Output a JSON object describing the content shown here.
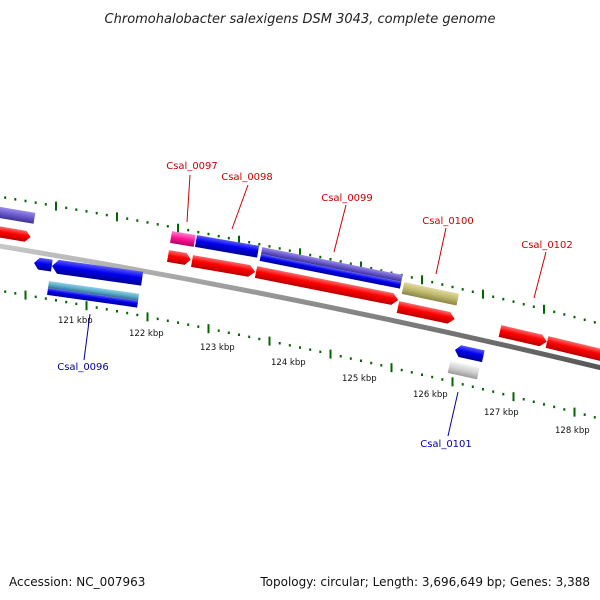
{
  "title": "Chromohalobacter salexigens DSM 3043, complete genome",
  "footer": {
    "accession": "Accession: NC_007963",
    "summary": "Topology: circular; Length: 3,696,649 bp; Genes: 3,388"
  },
  "colors": {
    "forward_label": "#cc0000",
    "reverse_label": "#0000aa",
    "tick": "#006600",
    "backbone": "#888888"
  },
  "kbp_labels": [
    "121 kbp",
    "122 kbp",
    "123 kbp",
    "124 kbp",
    "125 kbp",
    "126 kbp",
    "127 kbp",
    "128 kbp"
  ],
  "gene_labels": [
    {
      "name": "Csal_0096",
      "strand": "reverse"
    },
    {
      "name": "Csal_0097",
      "strand": "forward"
    },
    {
      "name": "Csal_0098",
      "strand": "forward"
    },
    {
      "name": "Csal_0099",
      "strand": "forward"
    },
    {
      "name": "Csal_0100",
      "strand": "forward"
    },
    {
      "name": "Csal_0101",
      "strand": "reverse"
    },
    {
      "name": "Csal_0102",
      "strand": "forward"
    }
  ]
}
